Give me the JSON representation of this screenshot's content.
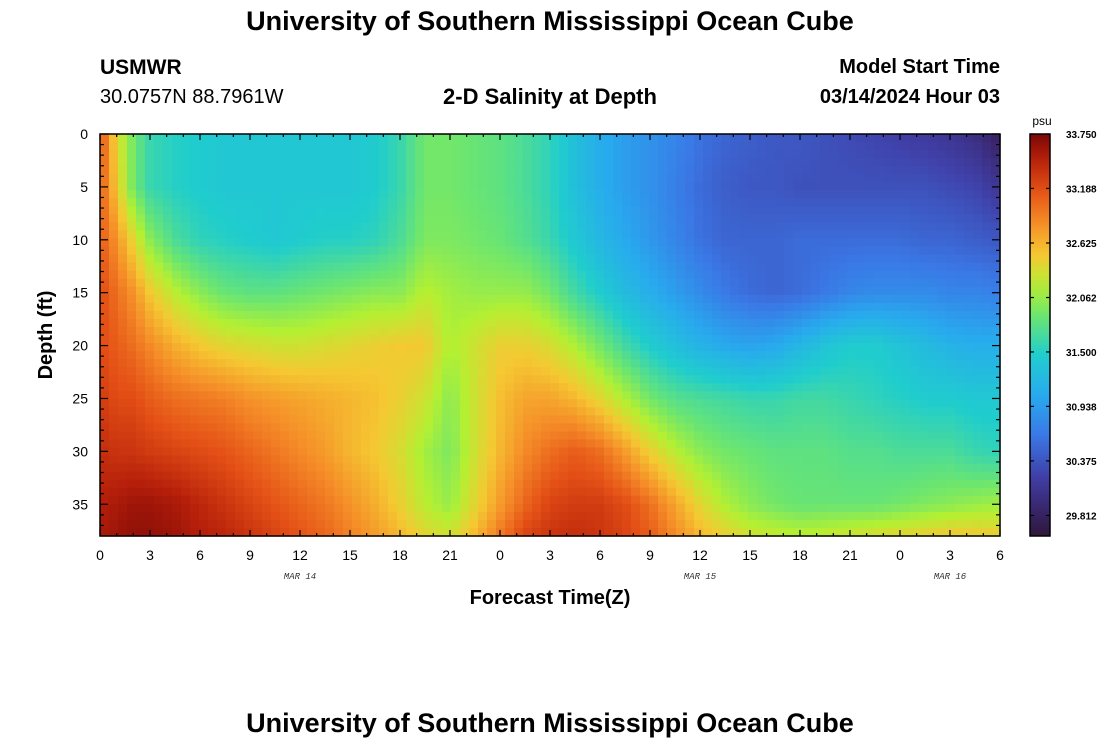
{
  "header": {
    "title": "University of Southern Mississippi Ocean Cube",
    "station_name": "USMWR",
    "station_coords": "30.0757N  88.7961W",
    "plot_title": "2-D Salinity at Depth",
    "start_label": "Model Start Time",
    "start_value": "03/14/2024 Hour 03"
  },
  "footer": {
    "title": "University of Southern Mississippi Ocean Cube"
  },
  "chart_data": {
    "type": "heatmap",
    "title": "2-D Salinity at Depth",
    "xlabel": "Forecast Time(Z)",
    "ylabel": "Depth (ft)",
    "x_range_hours": [
      0,
      54
    ],
    "y_range_ft": [
      0,
      38
    ],
    "x_tick_labels": [
      "0",
      "3",
      "6",
      "9",
      "12",
      "15",
      "18",
      "21",
      "0",
      "3",
      "6",
      "9",
      "12",
      "15",
      "18",
      "21",
      "0",
      "3",
      "6"
    ],
    "y_tick_labels": [
      "0",
      "5",
      "10",
      "15",
      "20",
      "25",
      "30",
      "35"
    ],
    "y_tick_values": [
      0,
      5,
      10,
      15,
      20,
      25,
      30,
      35
    ],
    "date_labels": [
      {
        "text": "MAR 14",
        "hour": 12
      },
      {
        "text": "MAR 15",
        "hour": 36
      },
      {
        "text": "MAR 16",
        "hour": 51
      }
    ],
    "colorbar": {
      "unit": "psu",
      "min": 29.6,
      "max": 33.75,
      "tick_labels": [
        "33.750",
        "33.188",
        "32.625",
        "32.062",
        "31.500",
        "30.938",
        "30.375",
        "29.812"
      ],
      "tick_values": [
        33.75,
        33.188,
        32.625,
        32.062,
        31.5,
        30.938,
        30.375,
        29.812
      ]
    },
    "salinity_grid": {
      "depths_ft": [
        0,
        5,
        10,
        15,
        20,
        25,
        30,
        35,
        38
      ],
      "hours": [
        0,
        1,
        2,
        3,
        4.5,
        6,
        7.5,
        9,
        10.5,
        12,
        13.5,
        15,
        16.5,
        18,
        19.5,
        21,
        22.5,
        24,
        25.5,
        27,
        28.5,
        30,
        31.5,
        33,
        34.5,
        36,
        37.5,
        39,
        40.5,
        42,
        43.5,
        45,
        46.5,
        48,
        49.5,
        51,
        52.5,
        54
      ],
      "values": [
        [
          33.2,
          32.4,
          31.9,
          31.6,
          31.5,
          31.45,
          31.4,
          31.4,
          31.4,
          31.4,
          31.4,
          31.4,
          31.45,
          31.6,
          31.9,
          31.9,
          31.85,
          31.8,
          31.7,
          31.55,
          31.3,
          31.1,
          30.95,
          30.85,
          30.75,
          30.6,
          30.5,
          30.45,
          30.4,
          30.4,
          30.35,
          30.3,
          30.25,
          30.2,
          30.15,
          30.1,
          30.0,
          29.8
        ],
        [
          33.1,
          32.5,
          31.9,
          31.6,
          31.5,
          31.45,
          31.4,
          31.4,
          31.4,
          31.4,
          31.4,
          31.4,
          31.45,
          31.6,
          31.9,
          31.9,
          31.85,
          31.8,
          31.7,
          31.55,
          31.3,
          31.1,
          30.95,
          30.85,
          30.7,
          30.55,
          30.45,
          30.4,
          30.4,
          30.35,
          30.35,
          30.35,
          30.35,
          30.35,
          30.35,
          30.3,
          30.25,
          30.1
        ],
        [
          33.1,
          32.8,
          32.4,
          32.0,
          31.7,
          31.55,
          31.5,
          31.45,
          31.4,
          31.45,
          31.5,
          31.5,
          31.55,
          31.7,
          31.95,
          31.95,
          31.9,
          31.85,
          31.75,
          31.6,
          31.4,
          31.2,
          31.05,
          30.9,
          30.75,
          30.6,
          30.5,
          30.5,
          30.5,
          30.55,
          30.55,
          30.55,
          30.55,
          30.55,
          30.5,
          30.5,
          30.45,
          30.4
        ],
        [
          33.2,
          33.0,
          32.8,
          32.5,
          32.2,
          32.0,
          31.85,
          31.8,
          31.8,
          31.85,
          31.9,
          31.95,
          32.0,
          32.0,
          32.2,
          32.1,
          32.05,
          32.05,
          32.05,
          31.9,
          31.65,
          31.45,
          31.25,
          31.1,
          30.95,
          30.8,
          30.65,
          30.55,
          30.5,
          30.55,
          30.65,
          30.75,
          30.8,
          30.8,
          30.8,
          30.75,
          30.75,
          30.7
        ],
        [
          33.2,
          33.1,
          33.0,
          32.85,
          32.65,
          32.5,
          32.4,
          32.35,
          32.3,
          32.3,
          32.35,
          32.4,
          32.45,
          32.5,
          32.5,
          32.15,
          32.3,
          32.45,
          32.45,
          32.35,
          32.15,
          31.9,
          31.65,
          31.45,
          31.3,
          31.15,
          31.05,
          31.0,
          31.05,
          31.2,
          31.35,
          31.45,
          31.45,
          31.35,
          31.25,
          31.15,
          31.1,
          31.1
        ],
        [
          33.3,
          33.2,
          33.2,
          33.1,
          33.0,
          32.95,
          32.9,
          32.8,
          32.75,
          32.7,
          32.65,
          32.6,
          32.55,
          32.45,
          32.3,
          32.0,
          32.3,
          32.55,
          32.7,
          32.7,
          32.6,
          32.4,
          32.15,
          31.9,
          31.75,
          31.7,
          31.65,
          31.6,
          31.6,
          31.65,
          31.65,
          31.6,
          31.55,
          31.5,
          31.45,
          31.45,
          31.4,
          31.4
        ],
        [
          33.4,
          33.35,
          33.35,
          33.3,
          33.25,
          33.2,
          33.15,
          33.05,
          32.95,
          32.85,
          32.75,
          32.6,
          32.5,
          32.35,
          32.1,
          31.95,
          32.3,
          32.6,
          32.85,
          33.0,
          33.1,
          33.0,
          32.75,
          32.45,
          32.2,
          32.0,
          31.9,
          31.85,
          31.8,
          31.8,
          31.8,
          31.75,
          31.75,
          31.7,
          31.7,
          31.7,
          31.6,
          31.55
        ],
        [
          33.5,
          33.55,
          33.6,
          33.6,
          33.55,
          33.45,
          33.35,
          33.25,
          33.15,
          33.05,
          32.95,
          32.8,
          32.65,
          32.45,
          32.2,
          32.05,
          32.4,
          32.75,
          33.05,
          33.25,
          33.3,
          33.3,
          33.2,
          33.0,
          32.7,
          32.4,
          32.15,
          32.0,
          31.9,
          31.85,
          31.85,
          31.85,
          31.85,
          31.9,
          31.95,
          32.0,
          32.05,
          32.1
        ],
        [
          33.55,
          33.6,
          33.65,
          33.65,
          33.6,
          33.5,
          33.45,
          33.35,
          33.25,
          33.15,
          33.05,
          32.9,
          32.75,
          32.6,
          32.4,
          32.3,
          32.6,
          32.95,
          33.25,
          33.35,
          33.4,
          33.35,
          33.25,
          33.1,
          32.85,
          32.6,
          32.45,
          32.3,
          32.25,
          32.2,
          32.25,
          32.3,
          32.35,
          32.4,
          32.45,
          32.5,
          32.5,
          32.45
        ]
      ]
    }
  }
}
